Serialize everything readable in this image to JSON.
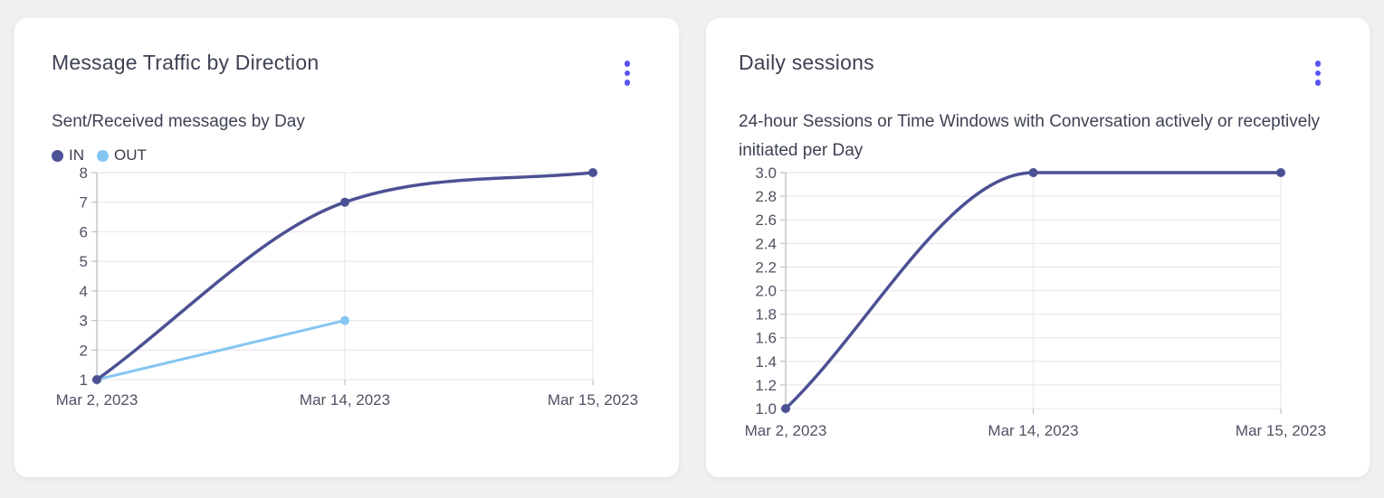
{
  "ui": {
    "background_color": "#f0f0f3",
    "card_color": "#ffffff",
    "accent_menu_color": "#5a54f2",
    "text_color": "#3e4253",
    "axis_label_color": "#4f5262",
    "gridline_color": "#e9e9ee",
    "axis_line_color": "#bfc0c9",
    "menu_icon": "kebab-vertical"
  },
  "cards": [
    {
      "title": "Message Traffic by Direction",
      "subtitle": "Sent/Received messages by Day",
      "has_legend": true
    },
    {
      "title": "Daily sessions",
      "subtitle": "24-hour Sessions or Time Windows with Conversation actively or receptively initiated per Day",
      "has_legend": false
    }
  ],
  "chart_data": [
    {
      "type": "line",
      "title": "Message Traffic by Direction",
      "subtitle": "Sent/Received messages by Day",
      "categories": [
        "Mar 2, 2023",
        "Mar 14, 2023",
        "Mar 15, 2023"
      ],
      "series": [
        {
          "name": "IN",
          "values": [
            1,
            7,
            8
          ],
          "color": "#4c5194",
          "line_width": 3.5,
          "smooth": true
        },
        {
          "name": "OUT",
          "values": [
            1,
            3,
            null
          ],
          "color": "#84c5f1",
          "line_width": 3,
          "smooth": true
        }
      ],
      "ylim": [
        1,
        8
      ],
      "y_ticks": [
        1,
        2,
        3,
        4,
        5,
        6,
        7,
        8
      ],
      "y_tick_labels": [
        "1",
        "2",
        "3",
        "4",
        "5",
        "6",
        "7",
        "8"
      ],
      "xlabel": "",
      "ylabel": "",
      "grid": true,
      "legend_position": "top-left"
    },
    {
      "type": "line",
      "title": "Daily sessions",
      "subtitle": "24-hour Sessions or Time Windows with Conversation actively or receptively initiated per Day",
      "categories": [
        "Mar 2, 2023",
        "Mar 14, 2023",
        "Mar 15, 2023"
      ],
      "series": [
        {
          "name": "Daily sessions",
          "values": [
            1.0,
            3.0,
            3.0
          ],
          "color": "#4c5194",
          "line_width": 3.5,
          "smooth": true
        }
      ],
      "ylim": [
        1.0,
        3.0
      ],
      "y_ticks": [
        1.0,
        1.2,
        1.4,
        1.6,
        1.8,
        2.0,
        2.2,
        2.4,
        2.6,
        2.8,
        3.0
      ],
      "y_tick_labels": [
        "1.0",
        "1.2",
        "1.4",
        "1.6",
        "1.8",
        "2.0",
        "2.2",
        "2.4",
        "2.6",
        "2.8",
        "3.0"
      ],
      "xlabel": "",
      "ylabel": "",
      "grid": true,
      "legend_position": "none"
    }
  ]
}
